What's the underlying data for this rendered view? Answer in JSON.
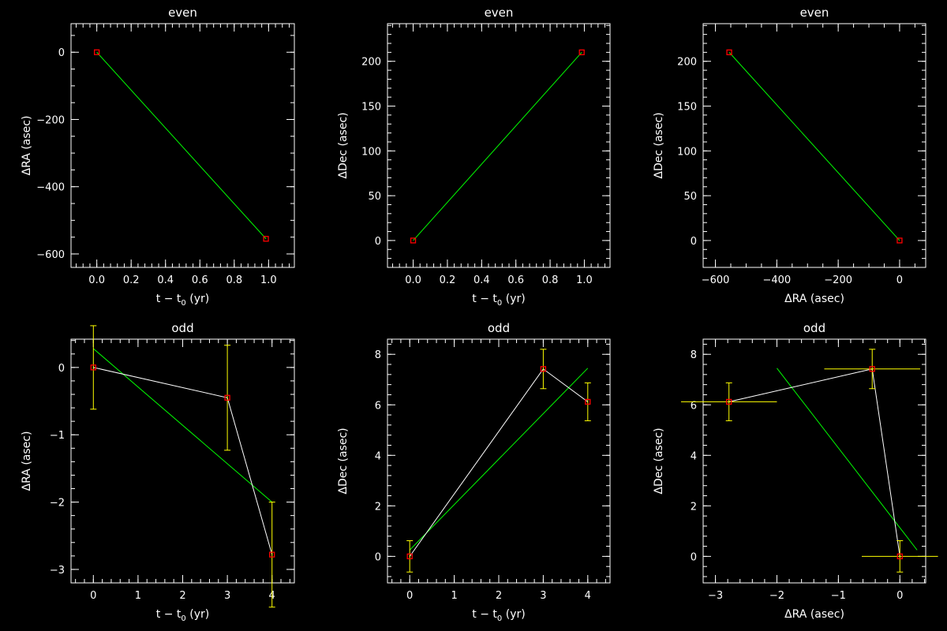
{
  "colors": {
    "background": "#000000",
    "axes": "#ffffff",
    "fit_line": "#00ff00",
    "data_line": "#ffffff",
    "error_bars": "#ffff00",
    "markers": "#ff0000"
  },
  "chart_data": [
    {
      "type": "scatter",
      "title": "even",
      "xlabel": "t − t",
      "xlabel_sub": "0",
      "xlabel_tail": " (yr)",
      "ylabel": "ΔRA (asec)",
      "xlim": [
        -0.15,
        1.15
      ],
      "ylim": [
        -640,
        85
      ],
      "xticks": [
        0.0,
        0.2,
        0.4,
        0.6,
        0.8,
        1.0
      ],
      "xtick_labels": [
        "0.0",
        "0.2",
        "0.4",
        "0.6",
        "0.8",
        "1.0"
      ],
      "yticks": [
        0,
        -200,
        -400,
        -600
      ],
      "ytick_labels": [
        "0",
        "−200",
        "−400",
        "−600"
      ],
      "points": [
        {
          "x": 0.0,
          "y": 0
        },
        {
          "x": 0.985,
          "y": -555
        }
      ],
      "data_line": false,
      "fit_line": [
        [
          0.0,
          0
        ],
        [
          0.985,
          -555
        ]
      ]
    },
    {
      "type": "scatter",
      "title": "even",
      "xlabel": "t − t",
      "xlabel_sub": "0",
      "xlabel_tail": " (yr)",
      "ylabel": "ΔDec (asec)",
      "xlim": [
        -0.15,
        1.15
      ],
      "ylim": [
        -30,
        242
      ],
      "xticks": [
        0.0,
        0.2,
        0.4,
        0.6,
        0.8,
        1.0
      ],
      "xtick_labels": [
        "0.0",
        "0.2",
        "0.4",
        "0.6",
        "0.8",
        "1.0"
      ],
      "yticks": [
        0,
        50,
        100,
        150,
        200
      ],
      "ytick_labels": [
        "0",
        "50",
        "100",
        "150",
        "200"
      ],
      "points": [
        {
          "x": 0.0,
          "y": 0
        },
        {
          "x": 0.985,
          "y": 210
        }
      ],
      "data_line": false,
      "fit_line": [
        [
          0.0,
          0
        ],
        [
          0.985,
          210
        ]
      ]
    },
    {
      "type": "scatter",
      "title": "even",
      "xlabel": "ΔRA (asec)",
      "xlabel_sub": "",
      "xlabel_tail": "",
      "ylabel": "ΔDec (asec)",
      "xlim": [
        -640,
        85
      ],
      "ylim": [
        -30,
        242
      ],
      "xticks": [
        -600,
        -400,
        -200,
        0
      ],
      "xtick_labels": [
        "−600",
        "−400",
        "−200",
        "0"
      ],
      "yticks": [
        0,
        50,
        100,
        150,
        200
      ],
      "ytick_labels": [
        "0",
        "50",
        "100",
        "150",
        "200"
      ],
      "points": [
        {
          "x": -555,
          "y": 210
        },
        {
          "x": 0,
          "y": 0
        }
      ],
      "data_line": false,
      "fit_line": [
        [
          -555,
          210
        ],
        [
          0,
          0
        ]
      ]
    },
    {
      "type": "scatter",
      "title": "odd",
      "xlabel": "t − t",
      "xlabel_sub": "0",
      "xlabel_tail": " (yr)",
      "ylabel": "ΔRA (asec)",
      "xlim": [
        -0.5,
        4.5
      ],
      "ylim": [
        -3.2,
        0.42
      ],
      "xticks": [
        0,
        1,
        2,
        3,
        4
      ],
      "xtick_labels": [
        "0",
        "1",
        "2",
        "3",
        "4"
      ],
      "yticks": [
        0,
        -1,
        -2,
        -3
      ],
      "ytick_labels": [
        "0",
        "−1",
        "−2",
        "−3"
      ],
      "points": [
        {
          "x": 0,
          "y": 0,
          "yerr": 0.62
        },
        {
          "x": 3,
          "y": -0.45,
          "yerr": 0.78
        },
        {
          "x": 4,
          "y": -2.78,
          "yerr": 0.78
        }
      ],
      "data_line": true,
      "fit_line": [
        [
          0,
          0.28
        ],
        [
          4,
          -2.0
        ]
      ]
    },
    {
      "type": "scatter",
      "title": "odd",
      "xlabel": "t − t",
      "xlabel_sub": "0",
      "xlabel_tail": " (yr)",
      "ylabel": "ΔDec (asec)",
      "xlim": [
        -0.5,
        4.5
      ],
      "ylim": [
        -1.05,
        8.6
      ],
      "xticks": [
        0,
        1,
        2,
        3,
        4
      ],
      "xtick_labels": [
        "0",
        "1",
        "2",
        "3",
        "4"
      ],
      "yticks": [
        0,
        2,
        4,
        6,
        8
      ],
      "ytick_labels": [
        "0",
        "2",
        "4",
        "6",
        "8"
      ],
      "points": [
        {
          "x": 0,
          "y": 0,
          "yerr": 0.62
        },
        {
          "x": 3,
          "y": 7.42,
          "yerr": 0.78
        },
        {
          "x": 4,
          "y": 6.12,
          "yerr": 0.75
        }
      ],
      "data_line": true,
      "fit_line": [
        [
          0,
          0.25
        ],
        [
          4,
          7.45
        ]
      ]
    },
    {
      "type": "scatter",
      "title": "odd",
      "xlabel": "ΔRA (asec)",
      "xlabel_sub": "",
      "xlabel_tail": "",
      "ylabel": "ΔDec (asec)",
      "xlim": [
        -3.2,
        0.42
      ],
      "ylim": [
        -1.05,
        8.6
      ],
      "xticks": [
        -3,
        -2,
        -1,
        0
      ],
      "xtick_labels": [
        "−3",
        "−2",
        "−1",
        "0"
      ],
      "yticks": [
        0,
        2,
        4,
        6,
        8
      ],
      "ytick_labels": [
        "0",
        "2",
        "4",
        "6",
        "8"
      ],
      "points": [
        {
          "x": -2.78,
          "y": 6.12,
          "xerr": 0.78,
          "yerr": 0.75
        },
        {
          "x": -0.45,
          "y": 7.42,
          "xerr": 0.78,
          "yerr": 0.78
        },
        {
          "x": 0,
          "y": 0,
          "xerr": 0.62,
          "yerr": 0.62
        }
      ],
      "data_line": true,
      "fit_line": [
        [
          -2.0,
          7.45
        ],
        [
          0.28,
          0.25
        ]
      ]
    }
  ]
}
